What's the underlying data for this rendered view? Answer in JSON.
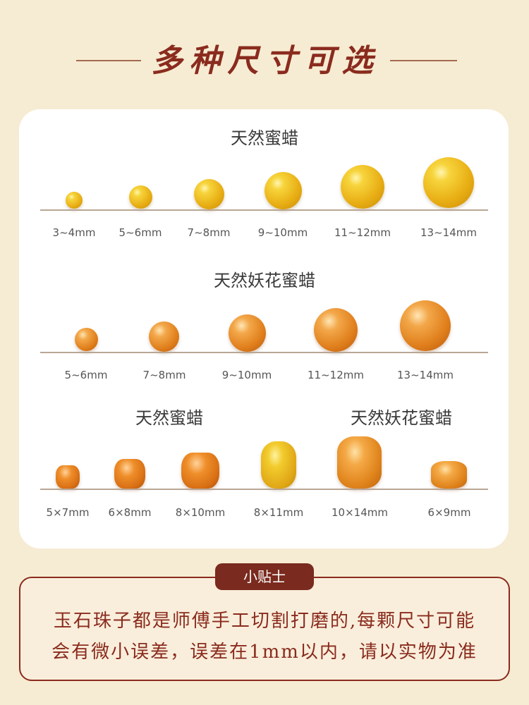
{
  "header": {
    "title": "多种尺寸可选"
  },
  "section1": {
    "title": "天然蜜蜡",
    "sizes": [
      "3~4mm",
      "5~6mm",
      "7~8mm",
      "9~10mm",
      "11~12mm",
      "13~14mm"
    ]
  },
  "section2": {
    "title": "天然妖花蜜蜡",
    "sizes": [
      "5~6mm",
      "7~8mm",
      "9~10mm",
      "11~12mm",
      "13~14mm"
    ]
  },
  "section3": {
    "title_left": "天然蜜蜡",
    "title_right": "天然妖花蜜蜡",
    "sizes": [
      "5×7mm",
      "6×8mm",
      "8×10mm",
      "8×11mm",
      "10×14mm",
      "6×9mm"
    ]
  },
  "tips": {
    "badge": "小贴士",
    "line1": "玉石珠子都是师傅手工切割打磨的,每颗尺寸可能",
    "line2": "会有微小误差，误差在1mm以内，请以实物为准"
  },
  "colors": {
    "background": "#f6ecd3",
    "accent": "#8a2b1e",
    "badge": "#7a2a1e",
    "bead_yellow": "#e8ae14",
    "bead_orange": "#e07f1c"
  }
}
